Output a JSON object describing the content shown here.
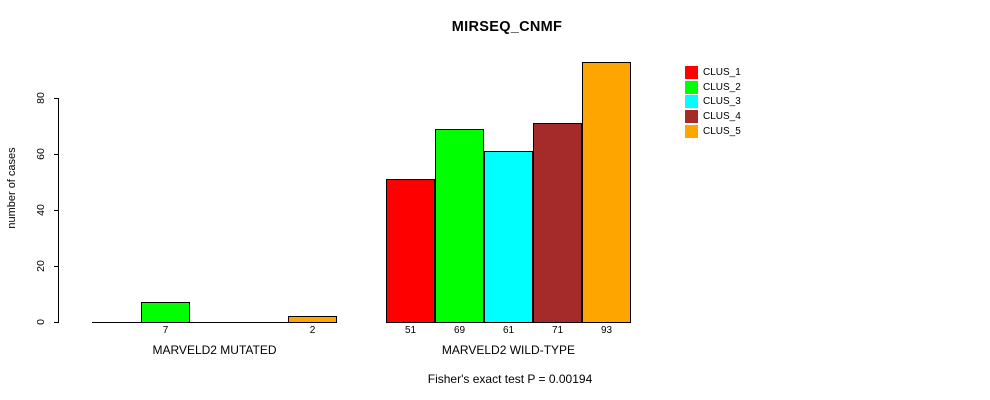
{
  "chart_data": {
    "type": "bar",
    "title": "MIRSEQ_CNMF",
    "ylabel": "number of cases",
    "xlabel": "",
    "footnote": "Fisher's exact test P = 0.00194",
    "categories": [
      "MARVELD2 MUTATED",
      "MARVELD2 WILD-TYPE"
    ],
    "series": [
      {
        "name": "CLUS_1",
        "color": "#ff0000",
        "values": [
          0,
          51
        ]
      },
      {
        "name": "CLUS_2",
        "color": "#00ff00",
        "values": [
          7,
          69
        ]
      },
      {
        "name": "CLUS_3",
        "color": "#00ffff",
        "values": [
          0,
          61
        ]
      },
      {
        "name": "CLUS_4",
        "color": "#a52a2a",
        "values": [
          0,
          71
        ]
      },
      {
        "name": "CLUS_5",
        "color": "#ffa500",
        "values": [
          2,
          93
        ]
      }
    ],
    "yticks": [
      0,
      20,
      40,
      60,
      80
    ],
    "ylim": [
      0,
      100
    ],
    "grid": false,
    "legend_position": "right",
    "bar_labels_shown": "value below each nonzero bar"
  }
}
